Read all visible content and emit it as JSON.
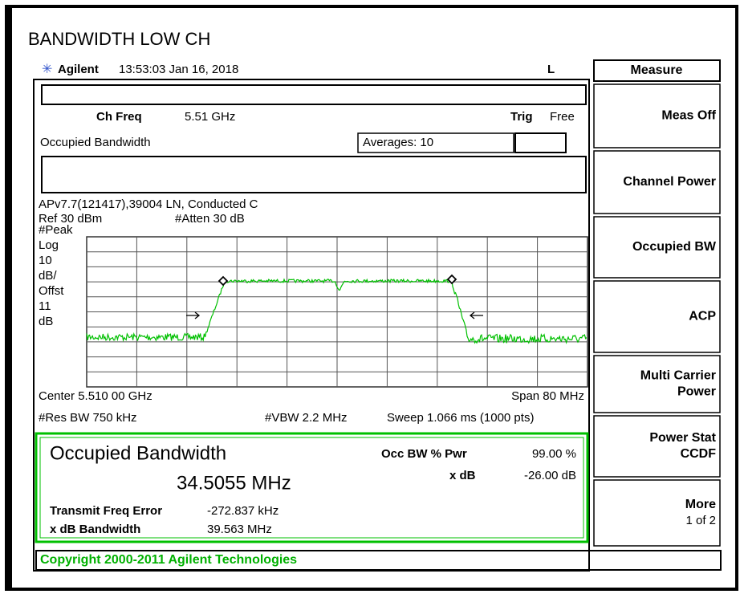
{
  "title": "BANDWIDTH LOW CH",
  "header": {
    "brand": "Agilent",
    "time": "13:53:03  Jan 16, 2018",
    "indicator": "L"
  },
  "screen": {
    "ch_freq_label": "Ch Freq",
    "ch_freq": "5.51 GHz",
    "trig_label": "Trig",
    "trig": "Free",
    "measurement": "Occupied Bandwidth",
    "averages": "Averages: 10",
    "description": "APv7.7(121417),39004 LN, Conducted C",
    "ref": "Ref 30 dBm",
    "atten": "#Atten 30 dB",
    "scale_labels": [
      "#Peak",
      "Log",
      "10",
      "dB/",
      "Offst",
      "11",
      "dB"
    ],
    "center": "Center 5.510 00 GHz",
    "span": "Span 80 MHz",
    "res_bw": "#Res BW 750 kHz",
    "vbw": "#VBW 2.2 MHz",
    "sweep": "Sweep 1.066 ms (1000 pts)"
  },
  "results": {
    "heading": "Occupied Bandwidth",
    "occ_bw": "34.5055 MHz",
    "occ_pwr_label": "Occ BW % Pwr",
    "occ_pwr": "99.00 %",
    "xdb_label": "x dB",
    "xdb": "-26.00 dB",
    "freq_error_label": "Transmit Freq Error",
    "freq_error": "-272.837 kHz",
    "xdb_bw_label": "x dB Bandwidth",
    "xdb_bw": "39.563 MHz"
  },
  "status": "Copyright 2000-2011 Agilent Technologies",
  "menu": {
    "title": "Measure",
    "keys": [
      [
        "Meas Off"
      ],
      [
        "Channel Power"
      ],
      [
        "Occupied BW"
      ],
      [
        "ACP"
      ],
      [
        "Multi Carrier",
        "Power"
      ],
      [
        "Power Stat",
        "CCDF"
      ],
      [
        "More",
        "1 of 2"
      ]
    ]
  }
}
